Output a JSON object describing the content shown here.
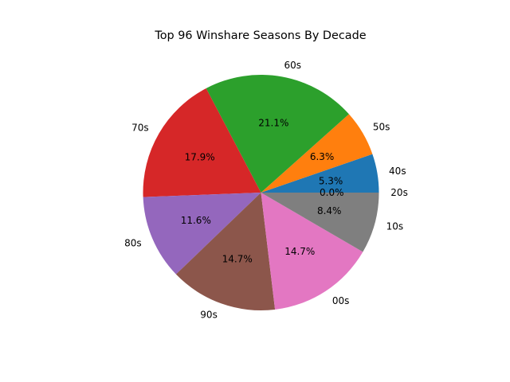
{
  "chart_data": {
    "type": "pie",
    "title": "Top 96 Winshare Seasons By Decade",
    "categories": [
      "40s",
      "50s",
      "60s",
      "70s",
      "80s",
      "90s",
      "00s",
      "10s",
      "20s"
    ],
    "values": [
      5.3,
      6.3,
      21.1,
      17.9,
      11.6,
      14.7,
      14.7,
      8.4,
      0.0
    ],
    "value_labels": [
      "5.3%",
      "6.3%",
      "21.1%",
      "17.9%",
      "11.6%",
      "14.7%",
      "14.7%",
      "8.4%",
      "0.0%"
    ],
    "colors": [
      "#1f77b4",
      "#ff7f0e",
      "#2ca02c",
      "#d62728",
      "#9467bd",
      "#8c564b",
      "#e377c2",
      "#7f7f7f",
      "#bcbd22"
    ],
    "start_angle_deg": 0,
    "direction": "counterclockwise"
  }
}
